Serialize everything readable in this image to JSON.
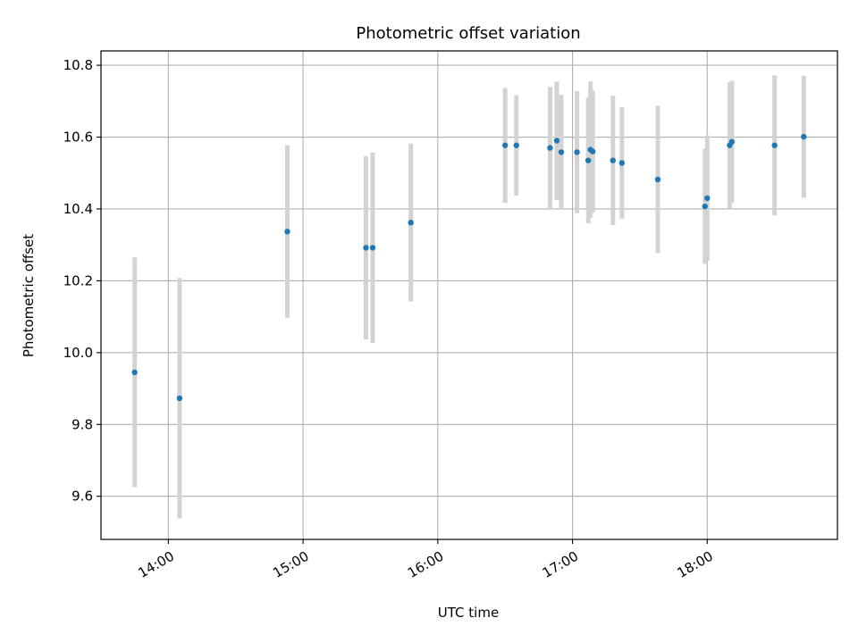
{
  "chart_data": {
    "type": "scatter",
    "title": "Photometric offset variation",
    "xlabel": "UTC time",
    "ylabel": "Photometric offset",
    "x_range": [
      "13:30",
      "18:58"
    ],
    "ylim": [
      9.48,
      10.84
    ],
    "x_ticks": [
      "14:00",
      "15:00",
      "16:00",
      "17:00",
      "18:00"
    ],
    "y_ticks": [
      9.6,
      9.8,
      10.0,
      10.2,
      10.4,
      10.6,
      10.8
    ],
    "y_tick_labels": [
      "9.6",
      "9.8",
      "10.0",
      "10.2",
      "10.4",
      "10.6",
      "10.8"
    ],
    "grid": true,
    "point_color": "#1f77b4",
    "errorbar_color": "#d3d3d3",
    "points": [
      {
        "t": "13:45",
        "y": 9.945,
        "err": 0.32
      },
      {
        "t": "14:05",
        "y": 9.873,
        "err": 0.335
      },
      {
        "t": "14:53",
        "y": 10.337,
        "err": 0.24
      },
      {
        "t": "15:28",
        "y": 10.292,
        "err": 0.255
      },
      {
        "t": "15:31",
        "y": 10.292,
        "err": 0.265
      },
      {
        "t": "15:48",
        "y": 10.362,
        "err": 0.22
      },
      {
        "t": "16:30",
        "y": 10.577,
        "err": 0.16
      },
      {
        "t": "16:35",
        "y": 10.577,
        "err": 0.14
      },
      {
        "t": "16:50",
        "y": 10.57,
        "err": 0.17
      },
      {
        "t": "16:53",
        "y": 10.59,
        "err": 0.165
      },
      {
        "t": "16:55",
        "y": 10.558,
        "err": 0.16
      },
      {
        "t": "17:02",
        "y": 10.558,
        "err": 0.17
      },
      {
        "t": "17:07",
        "y": 10.535,
        "err": 0.175
      },
      {
        "t": "17:08",
        "y": 10.565,
        "err": 0.19
      },
      {
        "t": "17:09",
        "y": 10.56,
        "err": 0.17
      },
      {
        "t": "17:18",
        "y": 10.535,
        "err": 0.18
      },
      {
        "t": "17:22",
        "y": 10.528,
        "err": 0.155
      },
      {
        "t": "17:38",
        "y": 10.482,
        "err": 0.205
      },
      {
        "t": "17:59",
        "y": 10.407,
        "err": 0.16
      },
      {
        "t": "18:00",
        "y": 10.43,
        "err": 0.175
      },
      {
        "t": "18:10",
        "y": 10.577,
        "err": 0.175
      },
      {
        "t": "18:11",
        "y": 10.587,
        "err": 0.17
      },
      {
        "t": "18:30",
        "y": 10.577,
        "err": 0.195
      },
      {
        "t": "18:43",
        "y": 10.601,
        "err": 0.17
      }
    ]
  }
}
